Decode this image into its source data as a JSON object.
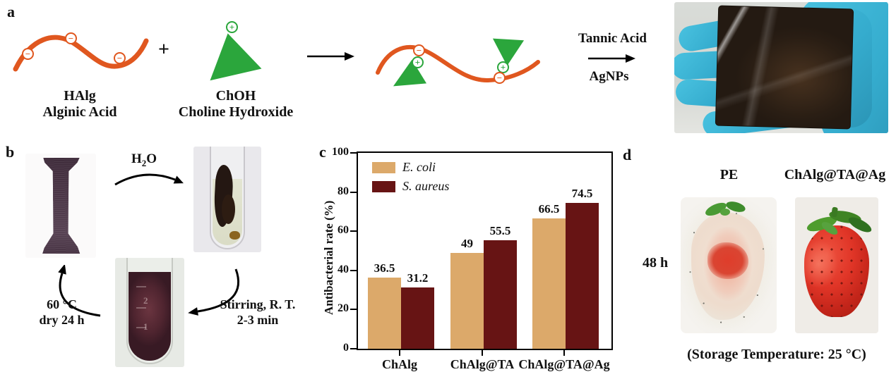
{
  "figure": {
    "panel_a": {
      "label": "a",
      "component1": {
        "abbr": "HAlg",
        "name": "Alginic Acid"
      },
      "plus_sign": "+",
      "component2": {
        "abbr": "ChOH",
        "name": "Choline Hydroxide"
      },
      "reaction_step": {
        "reagent_above": "Tannic Acid",
        "reagent_below": "AgNPs"
      },
      "charges": {
        "negative": "−",
        "positive": "+"
      },
      "colors": {
        "polymer_orange": "#E0571F",
        "choline_green": "#2BA63C"
      }
    },
    "panel_b": {
      "label": "b",
      "step_dissolve": {
        "formula_base": "H",
        "formula_subscript": "2",
        "formula_rest": "O"
      },
      "step_stir": {
        "line1": "Stirring, R. T.",
        "line2": "2-3 min"
      },
      "step_dry": {
        "line1": "60 °C",
        "line2": "dry 24 h"
      },
      "tube_graduation_upper": "2",
      "tube_graduation_lower": "1"
    },
    "panel_c": {
      "label": "c"
    },
    "panel_d": {
      "label": "d",
      "group_left": "PE",
      "group_right": "ChAlg@TA@Ag",
      "time_point": "48 h",
      "caption": "(Storage Temperature: 25 °C)"
    }
  },
  "chart_data": {
    "type": "bar",
    "categories": [
      "ChAlg",
      "ChAlg@TA",
      "ChAlg@TA@Ag"
    ],
    "series": [
      {
        "name": "E. coli",
        "color": "#DCA96A",
        "values": [
          36.5,
          49,
          66.5
        ]
      },
      {
        "name": "S. aureus",
        "color": "#671414",
        "values": [
          31.2,
          55.5,
          74.5
        ]
      }
    ],
    "title": "",
    "xlabel": "",
    "ylabel": "Antibacterial rate (%)",
    "ylim": [
      0,
      100
    ],
    "yticks": [
      0,
      20,
      40,
      60,
      80,
      100
    ],
    "legend_position": "top-left",
    "grid": false,
    "bar_value_labels": true
  }
}
